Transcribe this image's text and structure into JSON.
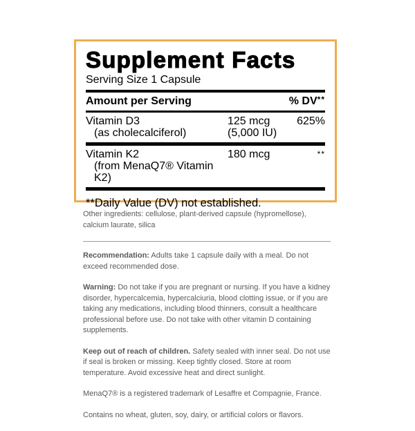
{
  "panel": {
    "title": "Supplement Facts",
    "serving_size": "Serving Size 1 Capsule",
    "header": {
      "amount_label": "Amount per Serving",
      "dv_label": "% DV",
      "dv_asterisks": "**"
    },
    "rows": [
      {
        "name": "Vitamin D3",
        "sub": "(as cholecalciferol)",
        "amount": "125 mcg",
        "amount_sub": "(5,000 IU)",
        "dv": "625%"
      },
      {
        "name": "Vitamin K2",
        "sub": "(from MenaQ7® Vitamin K2)",
        "amount": "180 mcg",
        "dv": "**"
      }
    ],
    "footnote": "**Daily Value (DV) not established."
  },
  "details": {
    "other_ingredients": "Other ingredients: cellulose, plant-derived capsule (hypromellose), calcium laurate, silica",
    "recommendation_label": "Recommendation:",
    "recommendation_text": "Adults take 1 capsule daily with a meal. Do not exceed recommended dose.",
    "warning_label": "Warning:",
    "warning_text": "Do not take if you are pregnant or nursing. If you have a kidney disorder, hypercalcemia, hypercalciuria, blood clotting issue, or if you are taking any medications, including blood thinners, consult a healthcare professional before use. Do not take with other vitamin D containing supplements.",
    "children_label": "Keep out of reach of children.",
    "children_text": "Safety sealed with inner seal. Do not use if seal is broken or missing. Keep tightly closed. Store at room temperature. Avoid excessive heat and direct sunlight.",
    "trademark_text": "MenaQ7® is a registered trademark of Lesaffre et Compagnie, France.",
    "contains_text": "Contains no wheat, gluten, soy, dairy, or artificial colors or flavors."
  },
  "colors": {
    "panel_border": "#ECAE4E",
    "detail_text": "#58595B",
    "panel_text": "#000000"
  }
}
